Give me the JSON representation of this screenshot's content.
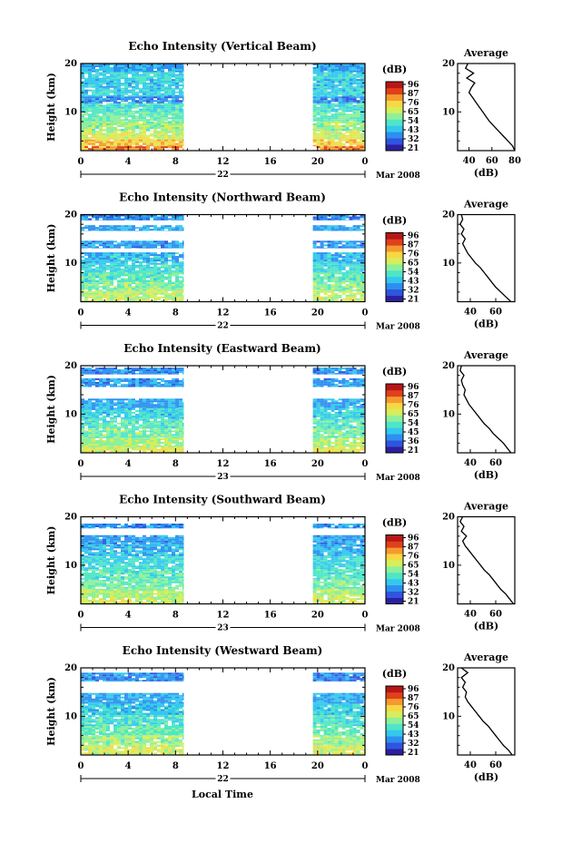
{
  "figure": {
    "x_label": "Local Time",
    "colorbar_unit": "(dB)",
    "date_suffix": "Mar 2008",
    "profile_title": "Average",
    "profile_xlabel": "(dB)",
    "colormap": [
      "#2c1fa0",
      "#2f55e0",
      "#2e8ff0",
      "#34c8ee",
      "#4fe6c8",
      "#8ef09a",
      "#d6ee5a",
      "#f7d844",
      "#f59a2e",
      "#e0401c",
      "#b81616"
    ]
  },
  "chart_data": [
    {
      "type": "heatmap",
      "title": "Echo Intensity (Vertical Beam)",
      "ylabel": "Height (km)",
      "xlabel": "",
      "xlim": [
        0,
        24
      ],
      "ylim": [
        2,
        20
      ],
      "x_ticks": [
        "0",
        "4",
        "8",
        "12",
        "16",
        "20",
        "0"
      ],
      "y_ticks": [
        "20",
        "10"
      ],
      "day_label": "22",
      "data_segments": [
        [
          0,
          8.7
        ],
        [
          19.6,
          24
        ]
      ],
      "colorbar_ticks": [
        "96",
        "87",
        "76",
        "65",
        "54",
        "43",
        "32",
        "21"
      ],
      "band_profile": [
        {
          "top": 20.0,
          "bottom": 18.2,
          "db": 40
        },
        {
          "top": 18.2,
          "bottom": 16.8,
          "db": 48
        },
        {
          "top": 16.8,
          "bottom": 15.0,
          "db": 44
        },
        {
          "top": 15.0,
          "bottom": 13.2,
          "db": 46
        },
        {
          "top": 13.2,
          "bottom": 11.8,
          "db": 36
        },
        {
          "top": 11.8,
          "bottom": 10.0,
          "db": 50
        },
        {
          "top": 10.0,
          "bottom": 8.0,
          "db": 55
        },
        {
          "top": 8.0,
          "bottom": 6.0,
          "db": 60
        },
        {
          "top": 6.0,
          "bottom": 4.3,
          "db": 66
        },
        {
          "top": 4.3,
          "bottom": 2.9,
          "db": 74
        },
        {
          "top": 2.9,
          "bottom": 2.0,
          "db": 82
        }
      ],
      "average_profile": {
        "xlim": [
          30,
          80
        ],
        "x_ticks": [
          "40",
          "60",
          "80"
        ],
        "height": [
          2,
          3,
          4,
          5,
          6,
          7,
          8,
          9,
          10,
          11,
          12,
          13,
          14,
          15,
          16,
          17,
          18,
          19,
          20
        ],
        "db": [
          80,
          78,
          74,
          70,
          66,
          62,
          58,
          55,
          52,
          49,
          46,
          43,
          40,
          42,
          45,
          38,
          44,
          37,
          39
        ]
      }
    },
    {
      "type": "heatmap",
      "title": "Echo Intensity (Northward Beam)",
      "ylabel": "Height (km)",
      "xlabel": "",
      "xlim": [
        0,
        24
      ],
      "ylim": [
        2,
        20
      ],
      "x_ticks": [
        "0",
        "4",
        "8",
        "12",
        "16",
        "20",
        "0"
      ],
      "y_ticks": [
        "20",
        "10"
      ],
      "day_label": "22",
      "data_segments": [
        [
          0,
          8.7
        ],
        [
          19.6,
          24
        ]
      ],
      "colorbar_ticks": [
        "96",
        "87",
        "76",
        "65",
        "54",
        "43",
        "32",
        "21"
      ],
      "band_profile": [
        {
          "top": 20.0,
          "bottom": 18.8,
          "db": 36
        },
        {
          "top": 17.8,
          "bottom": 16.6,
          "db": 40
        },
        {
          "top": 14.6,
          "bottom": 13.0,
          "db": 38
        },
        {
          "top": 12.2,
          "bottom": 10.0,
          "db": 42
        },
        {
          "top": 10.0,
          "bottom": 8.0,
          "db": 48
        },
        {
          "top": 8.0,
          "bottom": 6.0,
          "db": 53
        },
        {
          "top": 6.0,
          "bottom": 4.2,
          "db": 58
        },
        {
          "top": 4.2,
          "bottom": 2.0,
          "db": 64
        }
      ],
      "average_profile": {
        "xlim": [
          30,
          75
        ],
        "x_ticks": [
          "40",
          "60"
        ],
        "height": [
          2,
          3,
          4,
          5,
          6,
          7,
          8,
          9,
          10,
          11,
          12,
          13,
          14,
          15,
          16,
          17,
          18,
          19,
          20
        ],
        "db": [
          72,
          68,
          64,
          60,
          57,
          54,
          51,
          48,
          44,
          41,
          38,
          36,
          34,
          36,
          33,
          35,
          32,
          34,
          33
        ]
      }
    },
    {
      "type": "heatmap",
      "title": "Echo Intensity (Eastward Beam)",
      "ylabel": "Height (km)",
      "xlabel": "",
      "xlim": [
        0,
        24
      ],
      "ylim": [
        2,
        20
      ],
      "x_ticks": [
        "0",
        "4",
        "8",
        "12",
        "16",
        "20",
        "0"
      ],
      "y_ticks": [
        "20",
        "10"
      ],
      "day_label": "23",
      "data_segments": [
        [
          0,
          8.7
        ],
        [
          19.6,
          24
        ]
      ],
      "colorbar_ticks": [
        "96",
        "87",
        "76",
        "65",
        "54",
        "45",
        "36",
        "21"
      ],
      "band_profile": [
        {
          "top": 19.6,
          "bottom": 18.2,
          "db": 36
        },
        {
          "top": 17.4,
          "bottom": 15.6,
          "db": 38
        },
        {
          "top": 13.2,
          "bottom": 11.2,
          "db": 40
        },
        {
          "top": 11.2,
          "bottom": 9.0,
          "db": 46
        },
        {
          "top": 9.0,
          "bottom": 7.0,
          "db": 52
        },
        {
          "top": 7.0,
          "bottom": 5.0,
          "db": 57
        },
        {
          "top": 5.0,
          "bottom": 3.2,
          "db": 62
        },
        {
          "top": 3.2,
          "bottom": 2.0,
          "db": 68
        }
      ],
      "average_profile": {
        "xlim": [
          30,
          75
        ],
        "x_ticks": [
          "40",
          "60"
        ],
        "height": [
          2,
          3,
          4,
          5,
          6,
          7,
          8,
          9,
          10,
          11,
          12,
          13,
          14,
          15,
          16,
          17,
          18,
          19,
          20
        ],
        "db": [
          72,
          69,
          66,
          62,
          58,
          55,
          51,
          48,
          45,
          42,
          39,
          37,
          35,
          36,
          34,
          33,
          35,
          32,
          33
        ]
      }
    },
    {
      "type": "heatmap",
      "title": "Echo Intensity (Southward Beam)",
      "ylabel": "Height (km)",
      "xlabel": "",
      "xlim": [
        0,
        24
      ],
      "ylim": [
        2,
        20
      ],
      "x_ticks": [
        "0",
        "4",
        "8",
        "12",
        "16",
        "20",
        "0"
      ],
      "y_ticks": [
        "20",
        "10"
      ],
      "day_label": "23",
      "data_segments": [
        [
          0,
          8.7
        ],
        [
          19.6,
          24
        ]
      ],
      "colorbar_ticks": [
        "96",
        "87",
        "76",
        "65",
        "54",
        "43",
        "32",
        "21"
      ],
      "band_profile": [
        {
          "top": 18.6,
          "bottom": 17.6,
          "db": 36
        },
        {
          "top": 16.2,
          "bottom": 14.2,
          "db": 38
        },
        {
          "top": 14.2,
          "bottom": 11.8,
          "db": 42
        },
        {
          "top": 11.8,
          "bottom": 9.2,
          "db": 47
        },
        {
          "top": 9.2,
          "bottom": 7.0,
          "db": 52
        },
        {
          "top": 7.0,
          "bottom": 5.0,
          "db": 56
        },
        {
          "top": 5.0,
          "bottom": 3.2,
          "db": 62
        },
        {
          "top": 3.2,
          "bottom": 2.0,
          "db": 66
        }
      ],
      "average_profile": {
        "xlim": [
          30,
          75
        ],
        "x_ticks": [
          "40",
          "60"
        ],
        "height": [
          2,
          3,
          4,
          5,
          6,
          7,
          8,
          9,
          10,
          11,
          12,
          13,
          14,
          15,
          16,
          17,
          18,
          19,
          20
        ],
        "db": [
          74,
          71,
          68,
          64,
          61,
          58,
          55,
          51,
          48,
          45,
          42,
          39,
          36,
          34,
          37,
          33,
          35,
          32,
          34
        ]
      }
    },
    {
      "type": "heatmap",
      "title": "Echo Intensity (Westward Beam)",
      "ylabel": "Height (km)",
      "xlabel": "Local Time",
      "xlim": [
        0,
        24
      ],
      "ylim": [
        2,
        20
      ],
      "x_ticks": [
        "0",
        "4",
        "8",
        "12",
        "16",
        "20",
        "0"
      ],
      "y_ticks": [
        "20",
        "10"
      ],
      "day_label": "22",
      "data_segments": [
        [
          0,
          8.7
        ],
        [
          19.6,
          24
        ]
      ],
      "colorbar_ticks": [
        "96",
        "87",
        "76",
        "65",
        "54",
        "43",
        "32",
        "21"
      ],
      "band_profile": [
        {
          "top": 19.0,
          "bottom": 17.2,
          "db": 36
        },
        {
          "top": 14.8,
          "bottom": 12.6,
          "db": 40
        },
        {
          "top": 12.6,
          "bottom": 10.2,
          "db": 45
        },
        {
          "top": 10.2,
          "bottom": 8.0,
          "db": 50
        },
        {
          "top": 8.0,
          "bottom": 6.0,
          "db": 55
        },
        {
          "top": 6.0,
          "bottom": 4.0,
          "db": 60
        },
        {
          "top": 4.0,
          "bottom": 2.0,
          "db": 66
        }
      ],
      "average_profile": {
        "xlim": [
          30,
          75
        ],
        "x_ticks": [
          "40",
          "60"
        ],
        "height": [
          2,
          3,
          4,
          5,
          6,
          7,
          8,
          9,
          10,
          11,
          12,
          13,
          14,
          15,
          16,
          17,
          18,
          19,
          20
        ],
        "db": [
          73,
          70,
          66,
          63,
          60,
          57,
          54,
          50,
          47,
          44,
          41,
          38,
          36,
          37,
          34,
          36,
          33,
          38,
          33
        ]
      }
    }
  ]
}
